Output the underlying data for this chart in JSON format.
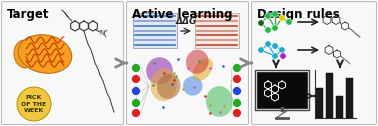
{
  "panel1_title": "Target",
  "panel2_title": "Active learning",
  "panel3_title": "Design rules",
  "panel_bg": "#f0f0f0",
  "border_color": "#bbbbbb",
  "outer_bg": "#ffffff",
  "title_fontsize": 8.5,
  "arrow_color": "#666666",
  "mitochondria_orange": "#f5a020",
  "mitochondria_red": "#cc3300",
  "badge_color": "#f0c840",
  "badge_text": "PICK\nOF THE\nWEEK",
  "badge_fontsize": 4.5,
  "ddg_text": "ΔΔG",
  "membrane_blue": "#5588cc",
  "membrane_red": "#cc5544",
  "nn_left_colors": [
    "#dd2222",
    "#22aa22",
    "#2244dd",
    "#dd2222",
    "#22aa22"
  ],
  "nn_right_colors": [
    "#dd2222",
    "#22aa22",
    "#2244dd",
    "#dd2222",
    "#22aa22"
  ],
  "scatter_region_colors": [
    "#9933aa",
    "#4488cc",
    "#ddaa22",
    "#44cc55",
    "#cc4444"
  ],
  "scatter_dot_colors": [
    "#dd2222",
    "#2255dd",
    "#22aa22",
    "#dd44dd",
    "#aaaa22"
  ],
  "mol1_node_colors": [
    "#22bb44",
    "#22bb44",
    "#22bb44",
    "#ddaa22",
    "#22bb44",
    "#22bb44",
    "#22bb44"
  ],
  "mol2_node_colors": [
    "#22aacc",
    "#22aacc",
    "#22aacc",
    "#22aacc",
    "#cc44cc",
    "#22aacc"
  ],
  "dark_green_node": "#116622",
  "purple_node": "#aa22cc"
}
